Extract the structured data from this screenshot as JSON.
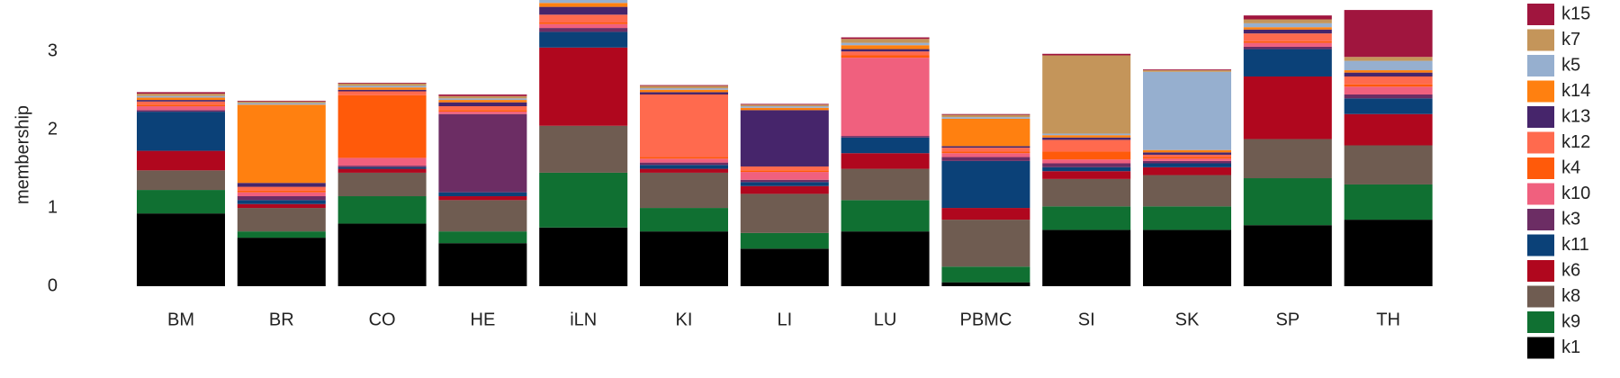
{
  "chart_data": {
    "type": "stacked_bar",
    "y_label": "membership",
    "categories": [
      "BM",
      "BR",
      "CO",
      "HE",
      "iLN",
      "KI",
      "LI",
      "LU",
      "PBMC",
      "SI",
      "SK",
      "SP",
      "TH"
    ],
    "ylim": [
      0,
      3.6
    ],
    "yticks": [
      0,
      1,
      2,
      3
    ],
    "grid": false,
    "legend": "right",
    "series": [
      {
        "name": "k1",
        "color": "#000000",
        "values": [
          0.93,
          0.62,
          0.8,
          0.55,
          0.75,
          0.7,
          0.48,
          0.7,
          0.05,
          0.72,
          0.72,
          0.78,
          0.85
        ]
      },
      {
        "name": "k9",
        "color": "#107032",
        "values": [
          0.3,
          0.08,
          0.35,
          0.15,
          0.7,
          0.3,
          0.2,
          0.4,
          0.2,
          0.3,
          0.3,
          0.6,
          0.45
        ]
      },
      {
        "name": "k8",
        "color": "#6f5c51",
        "values": [
          0.25,
          0.3,
          0.3,
          0.4,
          0.6,
          0.45,
          0.5,
          0.4,
          0.6,
          0.35,
          0.4,
          0.5,
          0.5
        ]
      },
      {
        "name": "k6",
        "color": "#b0071e",
        "values": [
          0.25,
          0.05,
          0.05,
          0.05,
          1.0,
          0.05,
          0.1,
          0.2,
          0.15,
          0.1,
          0.1,
          0.8,
          0.4
        ]
      },
      {
        "name": "k11",
        "color": "#0b4178",
        "values": [
          0.5,
          0.05,
          0.02,
          0.05,
          0.2,
          0.05,
          0.05,
          0.2,
          0.6,
          0.05,
          0.05,
          0.35,
          0.2
        ]
      },
      {
        "name": "k3",
        "color": "#6c2d64",
        "values": [
          0.02,
          0.05,
          0.02,
          1.0,
          0.05,
          0.03,
          0.03,
          0.02,
          0.05,
          0.05,
          0.03,
          0.03,
          0.05
        ]
      },
      {
        "name": "k10",
        "color": "#f0607e",
        "values": [
          0.05,
          0.05,
          0.1,
          0.03,
          0.05,
          0.05,
          0.1,
          1.0,
          0.05,
          0.05,
          0.03,
          0.05,
          0.1
        ]
      },
      {
        "name": "k4",
        "color": "#ff5a0a",
        "values": [
          0.02,
          0.02,
          0.8,
          0.02,
          0.02,
          0.02,
          0.02,
          0.03,
          0.02,
          0.1,
          0.02,
          0.02,
          0.03
        ]
      },
      {
        "name": "k12",
        "color": "#ff6a4e",
        "values": [
          0.04,
          0.05,
          0.05,
          0.05,
          0.1,
          0.8,
          0.05,
          0.05,
          0.05,
          0.15,
          0.03,
          0.1,
          0.1
        ]
      },
      {
        "name": "k13",
        "color": "#46256b",
        "values": [
          0.02,
          0.05,
          0.02,
          0.05,
          0.1,
          0.03,
          0.72,
          0.03,
          0.02,
          0.03,
          0.03,
          0.05,
          0.05
        ]
      },
      {
        "name": "k14",
        "color": "#ff8010",
        "values": [
          0.03,
          1.0,
          0.03,
          0.03,
          0.05,
          0.03,
          0.03,
          0.05,
          0.35,
          0.03,
          0.03,
          0.03,
          0.03
        ]
      },
      {
        "name": "k5",
        "color": "#96afcf",
        "values": [
          0.02,
          0.02,
          0.02,
          0.02,
          0.05,
          0.02,
          0.02,
          0.03,
          0.02,
          0.02,
          1.0,
          0.05,
          0.12
        ]
      },
      {
        "name": "k7",
        "color": "#c4955a",
        "values": [
          0.03,
          0.02,
          0.03,
          0.03,
          0.05,
          0.03,
          0.02,
          0.05,
          0.03,
          1.0,
          0.02,
          0.05,
          0.05
        ]
      },
      {
        "name": "k15",
        "color": "#a0153e",
        "values": [
          0.02,
          0.01,
          0.01,
          0.02,
          0.08,
          0.01,
          0.01,
          0.02,
          0.01,
          0.02,
          0.01,
          0.05,
          0.6
        ]
      }
    ]
  }
}
